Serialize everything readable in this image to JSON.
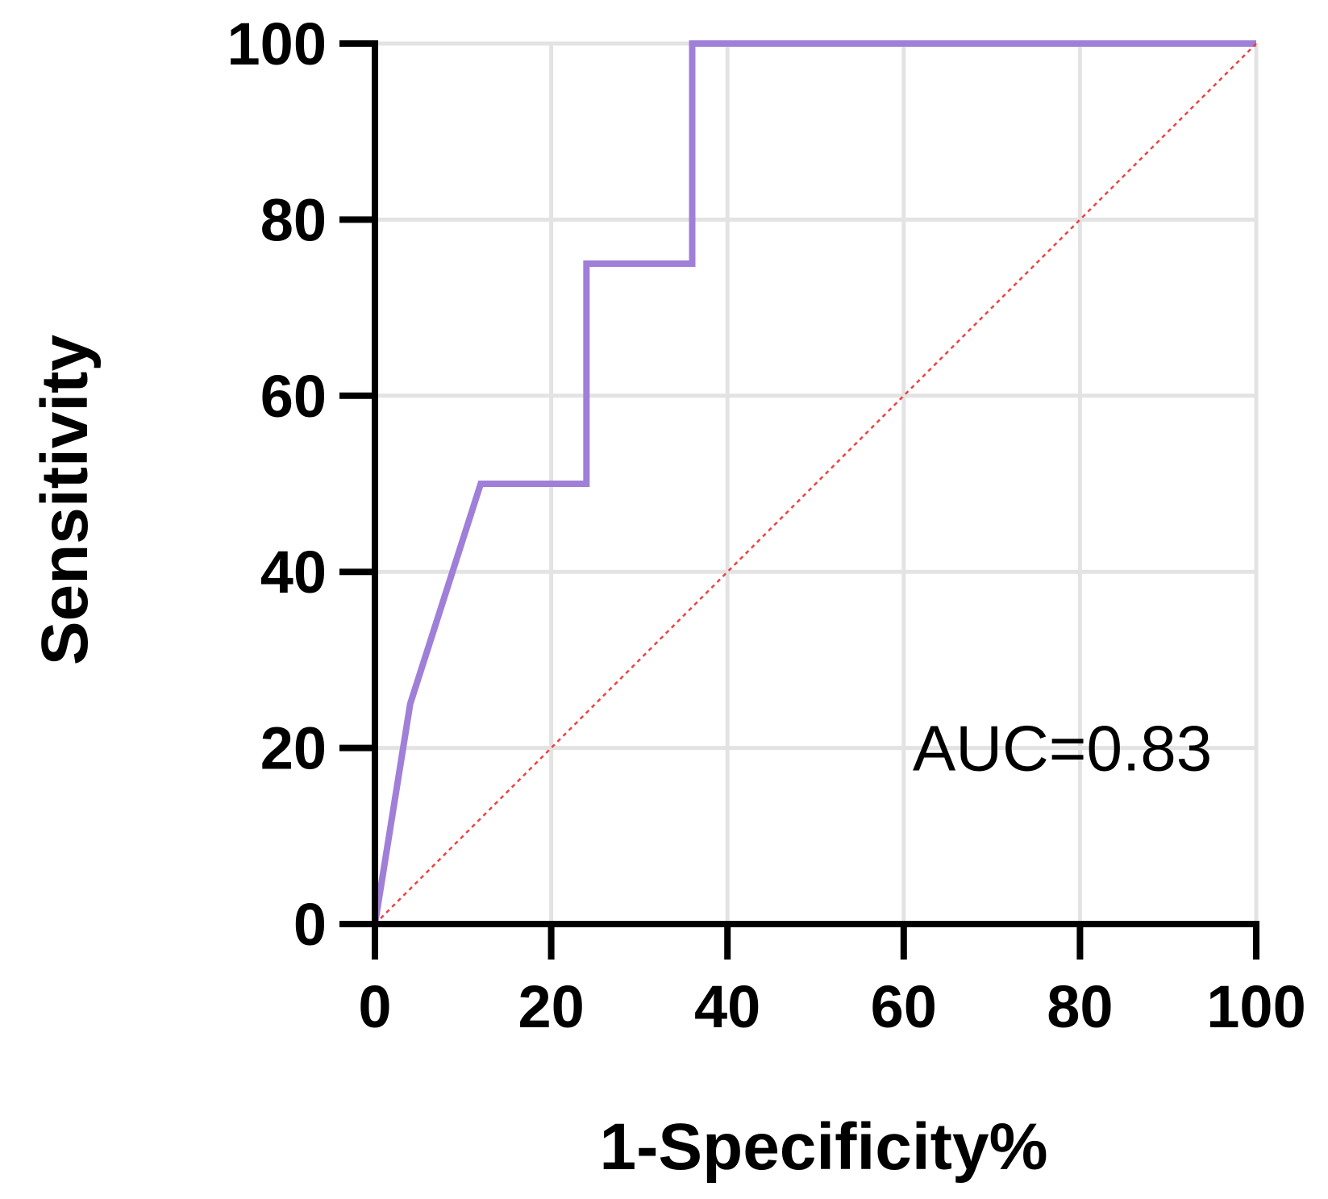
{
  "chart_data": {
    "type": "line",
    "title": "",
    "xlabel": "1-Specificity%",
    "ylabel": "Sensitivity",
    "xlim": [
      0,
      100
    ],
    "ylim": [
      0,
      100
    ],
    "xticks": [
      0,
      20,
      40,
      60,
      80,
      100
    ],
    "yticks": [
      0,
      20,
      40,
      60,
      80,
      100
    ],
    "grid": true,
    "legend": "none",
    "series": [
      {
        "color": "#a07fd8",
        "x": [
          0,
          4,
          12,
          24,
          24,
          36,
          36,
          100
        ],
        "y": [
          0,
          25,
          50,
          50,
          75,
          75,
          100,
          100
        ]
      },
      {
        "color": "#f04040",
        "style": "dotted",
        "x": [
          0,
          100
        ],
        "y": [
          0,
          100
        ]
      }
    ],
    "annotations": [
      {
        "text": "AUC=0.83",
        "x": 78,
        "y": 20
      }
    ]
  }
}
